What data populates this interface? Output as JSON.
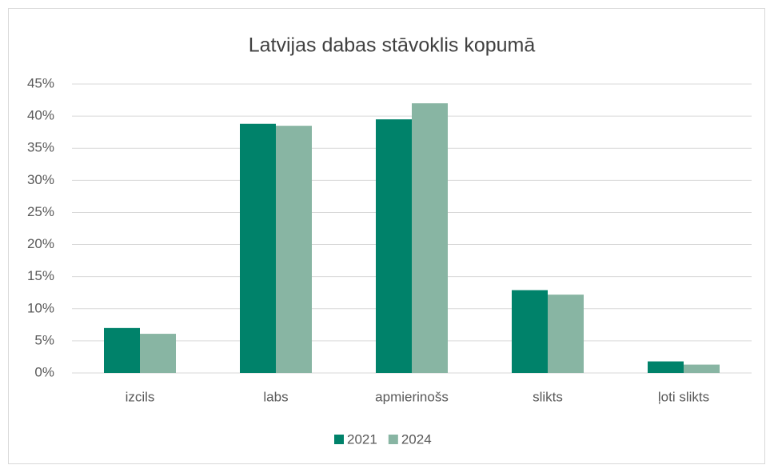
{
  "chart_data": {
    "type": "bar",
    "title": "Latvijas dabas stāvoklis kopumā",
    "categories": [
      "izcils",
      "labs",
      "apmierinošs",
      "slikts",
      "ļoti slikts"
    ],
    "series": [
      {
        "name": "2021",
        "color": "#00826a",
        "values": [
          7.0,
          38.8,
          39.5,
          12.9,
          1.8
        ]
      },
      {
        "name": "2024",
        "color": "#88b5a3",
        "values": [
          6.1,
          38.5,
          42.0,
          12.2,
          1.3
        ]
      }
    ],
    "ylim": [
      0,
      45
    ],
    "yticks": [
      {
        "value": 0,
        "label": "0%"
      },
      {
        "value": 5,
        "label": "5%"
      },
      {
        "value": 10,
        "label": "10%"
      },
      {
        "value": 15,
        "label": "15%"
      },
      {
        "value": 20,
        "label": "20%"
      },
      {
        "value": 25,
        "label": "25%"
      },
      {
        "value": 30,
        "label": "30%"
      },
      {
        "value": 35,
        "label": "35%"
      },
      {
        "value": 40,
        "label": "40%"
      },
      {
        "value": 45,
        "label": "45%"
      }
    ],
    "grid": true,
    "legend": "bottom"
  }
}
